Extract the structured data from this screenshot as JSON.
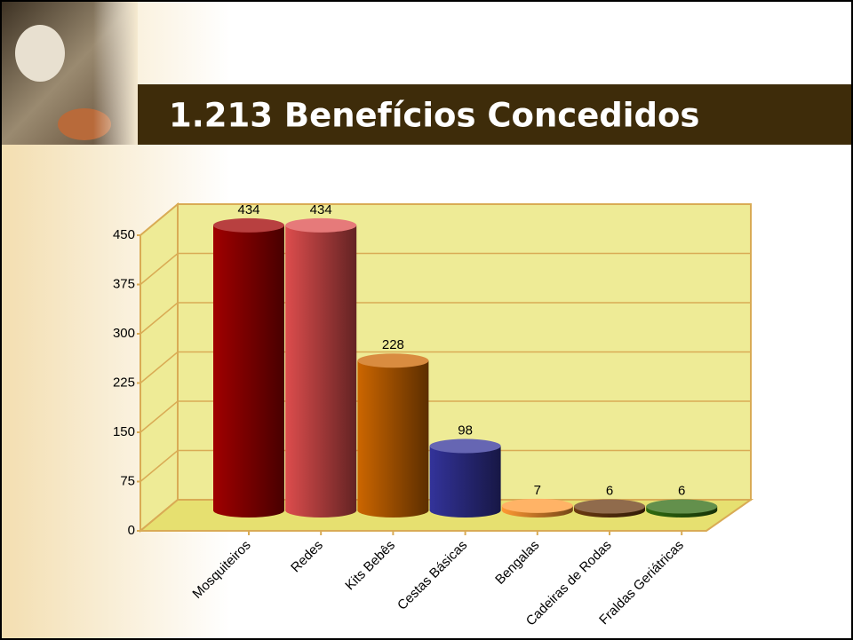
{
  "chart_data": {
    "type": "cylinder-bar",
    "title": "1.213 Benefícios Concedidos",
    "categories": [
      "Mosquiteiros",
      "Redes",
      "Kits Bebês",
      "Cestas Básicas",
      "Bengalas",
      "Cadeiras de Rodas",
      "Fraldas Geriátricas"
    ],
    "values": [
      434,
      434,
      228,
      98,
      7,
      6,
      6
    ],
    "colors": [
      "#a00000",
      "#dd4d4d",
      "#cc6600",
      "#33339a",
      "#ff9933",
      "#6b3a10",
      "#2f6b10"
    ],
    "ylim": [
      0,
      450
    ],
    "yticks": [
      0,
      75,
      150,
      225,
      300,
      375,
      450
    ],
    "grid": true
  }
}
